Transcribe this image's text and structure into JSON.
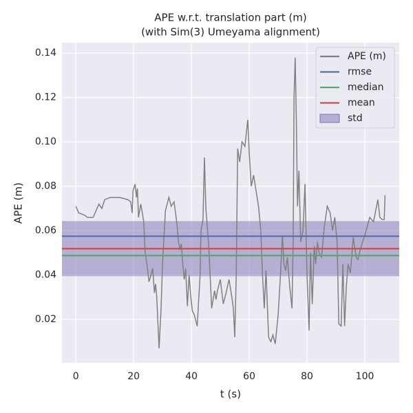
{
  "chart_data": {
    "type": "line",
    "title": "APE w.r.t. translation part (m)",
    "subtitle": "(with Sim(3) Umeyama alignment)",
    "xlabel": "t (s)",
    "ylabel": "APE (m)",
    "x": [
      0,
      1,
      3,
      4,
      6,
      7,
      8,
      9,
      10,
      12,
      15,
      18,
      19,
      19.5,
      19.8,
      20.5,
      21,
      21.3,
      21.7,
      22.5,
      23.5,
      24,
      24.7,
      25.3,
      26,
      26.6,
      27.2,
      27.6,
      28,
      28.8,
      29.5,
      30,
      31,
      31.6,
      32.2,
      33,
      34,
      35,
      35.5,
      36,
      36.5,
      37,
      37.5,
      38,
      38.6,
      39.2,
      39.8,
      40.3,
      41,
      42,
      43,
      43.3,
      44,
      44.5,
      45,
      46,
      47,
      48,
      48.5,
      49,
      50,
      51,
      52,
      53,
      54,
      54.5,
      55,
      55.5,
      56,
      56.7,
      57.5,
      58.5,
      59.5,
      60,
      60.7,
      61.5,
      62.5,
      63.3,
      64,
      64.6,
      65.2,
      65.8,
      66.4,
      66.7,
      67.5,
      68.2,
      69,
      70,
      70.8,
      71.5,
      72,
      72.6,
      73.2,
      74,
      74.8,
      75.2,
      75.5,
      75.9,
      76.3,
      76.7,
      77.2,
      77.8,
      78.6,
      79.3,
      80,
      80.7,
      81.2,
      81.8,
      82.5,
      83,
      83.6,
      84.2,
      85,
      86,
      87,
      88,
      88.8,
      89.6,
      90.4,
      91,
      91.8,
      92.4,
      93,
      93.6,
      94.2,
      95,
      96,
      97,
      97.6,
      98.5,
      100,
      101.7,
      103,
      104.5,
      105.2,
      106,
      106.7,
      107
    ],
    "series": [
      {
        "name": "APE (m)",
        "color": "#808080",
        "values": [
          0.071,
          0.068,
          0.067,
          0.066,
          0.066,
          0.069,
          0.072,
          0.07,
          0.074,
          0.075,
          0.075,
          0.074,
          0.073,
          0.068,
          0.078,
          0.081,
          0.075,
          0.079,
          0.066,
          0.072,
          0.064,
          0.05,
          0.044,
          0.037,
          0.04,
          0.043,
          0.032,
          0.036,
          0.03,
          0.007,
          0.025,
          0.045,
          0.069,
          0.072,
          0.075,
          0.071,
          0.073,
          0.063,
          0.055,
          0.052,
          0.054,
          0.045,
          0.038,
          0.043,
          0.026,
          0.04,
          0.03,
          0.024,
          0.022,
          0.017,
          0.04,
          0.06,
          0.065,
          0.093,
          0.07,
          0.053,
          0.025,
          0.033,
          0.029,
          0.033,
          0.038,
          0.027,
          0.032,
          0.038,
          0.03,
          0.025,
          0.012,
          0.04,
          0.097,
          0.091,
          0.1,
          0.098,
          0.11,
          0.095,
          0.08,
          0.085,
          0.077,
          0.07,
          0.06,
          0.04,
          0.025,
          0.042,
          0.022,
          0.012,
          0.01,
          0.013,
          0.009,
          0.022,
          0.04,
          0.058,
          0.045,
          0.042,
          0.048,
          0.035,
          0.025,
          0.055,
          0.12,
          0.138,
          0.11,
          0.071,
          0.087,
          0.055,
          0.06,
          0.081,
          0.04,
          0.015,
          0.05,
          0.027,
          0.053,
          0.045,
          0.055,
          0.05,
          0.048,
          0.062,
          0.071,
          0.068,
          0.06,
          0.066,
          0.055,
          0.018,
          0.017,
          0.045,
          0.017,
          0.035,
          0.045,
          0.041,
          0.057,
          0.048,
          0.047,
          0.052,
          0.058,
          0.066,
          0.064,
          0.074,
          0.066,
          0.065,
          0.065,
          0.076
        ]
      }
    ],
    "stats": [
      {
        "name": "rmse",
        "color": "#4c72b0",
        "value": 0.0575
      },
      {
        "name": "median",
        "color": "#55a868",
        "value": 0.0488
      },
      {
        "name": "mean",
        "color": "#c44e52",
        "value": 0.0519
      }
    ],
    "band": {
      "name": "std",
      "color": "#8172b3",
      "value": 0.0124
    },
    "xlim": [
      -4.8,
      111.9
    ],
    "ylim": [
      0.0005,
      0.1447
    ],
    "xticks": [
      0,
      20,
      40,
      60,
      80,
      100
    ],
    "yticks": [
      0.02,
      0.04,
      0.06,
      0.08,
      {
        "value": 0.1,
        "label": "0.10"
      },
      0.12,
      0.14
    ],
    "grid": true,
    "legend": "upper right"
  }
}
